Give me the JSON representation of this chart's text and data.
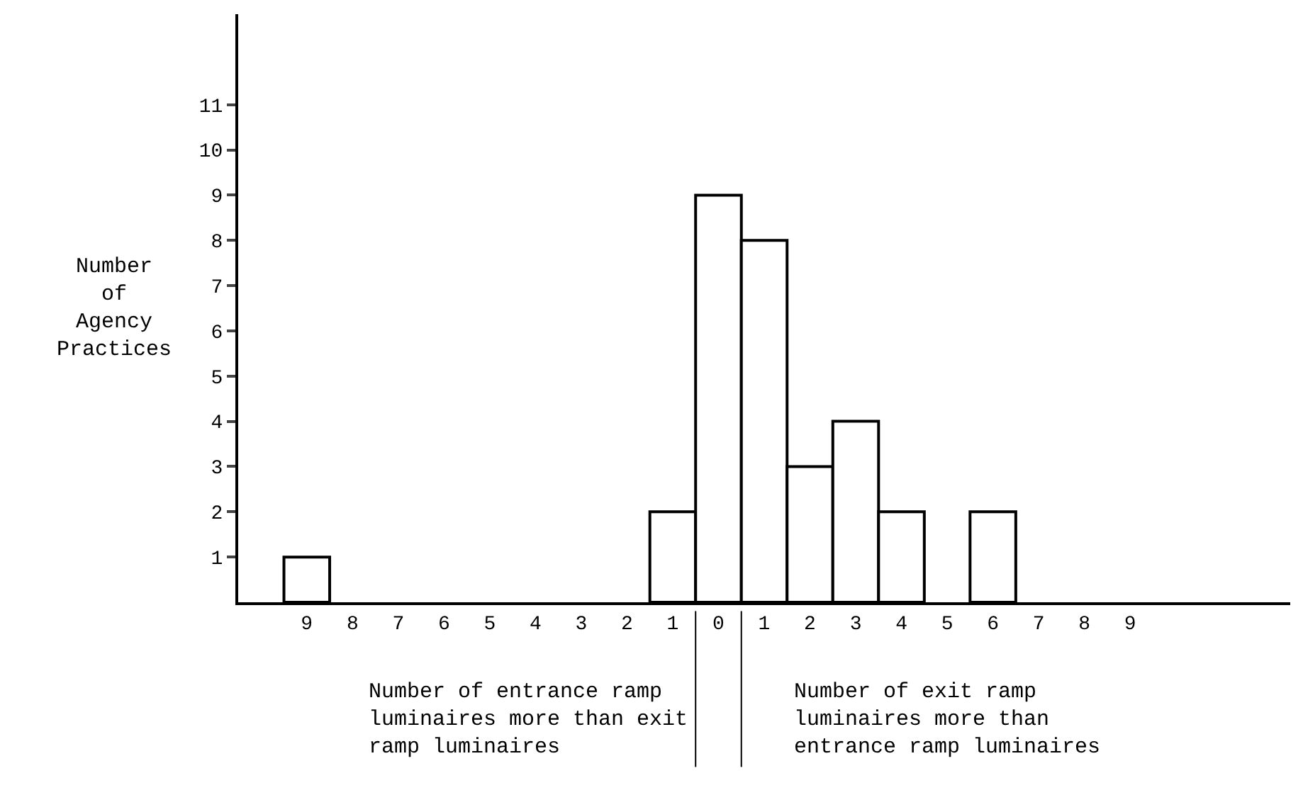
{
  "chart_data": {
    "type": "bar",
    "ylabel": "Number of Agency Practices",
    "categories": [
      "9",
      "8",
      "7",
      "6",
      "5",
      "4",
      "3",
      "2",
      "1",
      "0",
      "1",
      "2",
      "3",
      "4",
      "5",
      "6",
      "7",
      "8",
      "9"
    ],
    "values": [
      1,
      0,
      0,
      0,
      0,
      0,
      0,
      0,
      2,
      9,
      8,
      3,
      4,
      2,
      0,
      2,
      0,
      0,
      0
    ],
    "color": "#ffffff",
    "ylim": [
      0,
      13
    ],
    "yticks": [
      1,
      2,
      3,
      4,
      5,
      6,
      7,
      8,
      9,
      10,
      11
    ],
    "annotations": [
      "Number of entrance ramp luminaires more than exit ramp luminaires",
      "Number of exit ramp luminaires more than entrance ramp luminaires"
    ]
  }
}
